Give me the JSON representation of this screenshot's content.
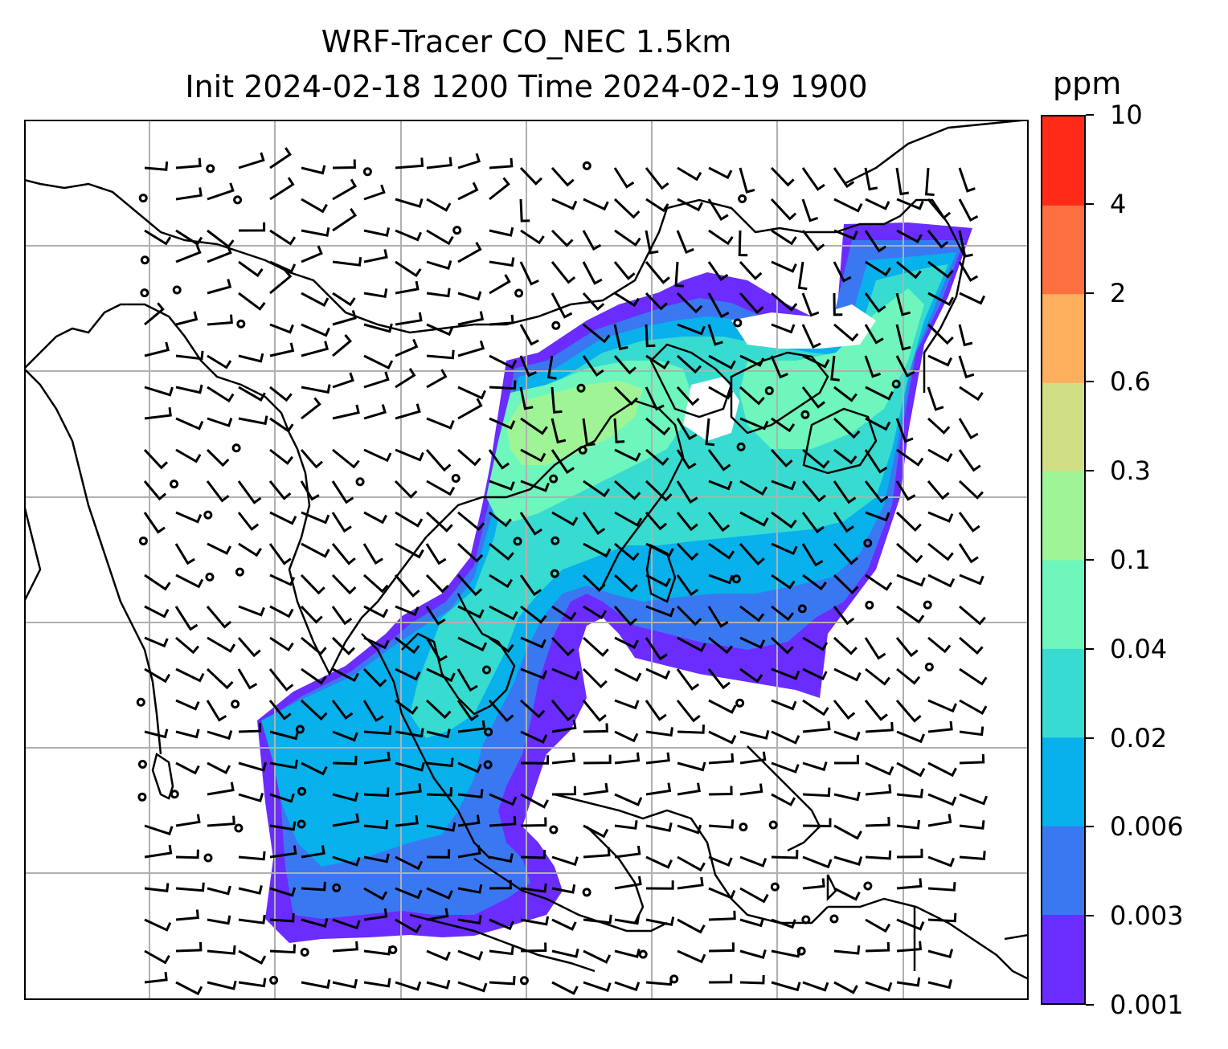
{
  "title": {
    "line1": "WRF-Tracer CO_NEC 1.5km",
    "line2": "Init 2024-02-18 1200 Time 2024-02-19 1900"
  },
  "colorbar": {
    "unit": "ppm",
    "levels": [
      "0.001",
      "0.003",
      "0.006",
      "0.02",
      "0.04",
      "0.1",
      "0.3",
      "0.6",
      "2",
      "4",
      "10"
    ],
    "colors": [
      "#6a2cff",
      "#3a78f2",
      "#08b0ec",
      "#38dbd0",
      "#6ef6bc",
      "#9ff595",
      "#d1df84",
      "#ffb05e",
      "#ff7040",
      "#ff2a18"
    ]
  },
  "map": {
    "type": "filled-contour-with-wind-barbs",
    "grid": true,
    "field": "CO_NEC tracer concentration",
    "coastline_color": "#000000",
    "gridline_color": "#b0b0b0"
  }
}
